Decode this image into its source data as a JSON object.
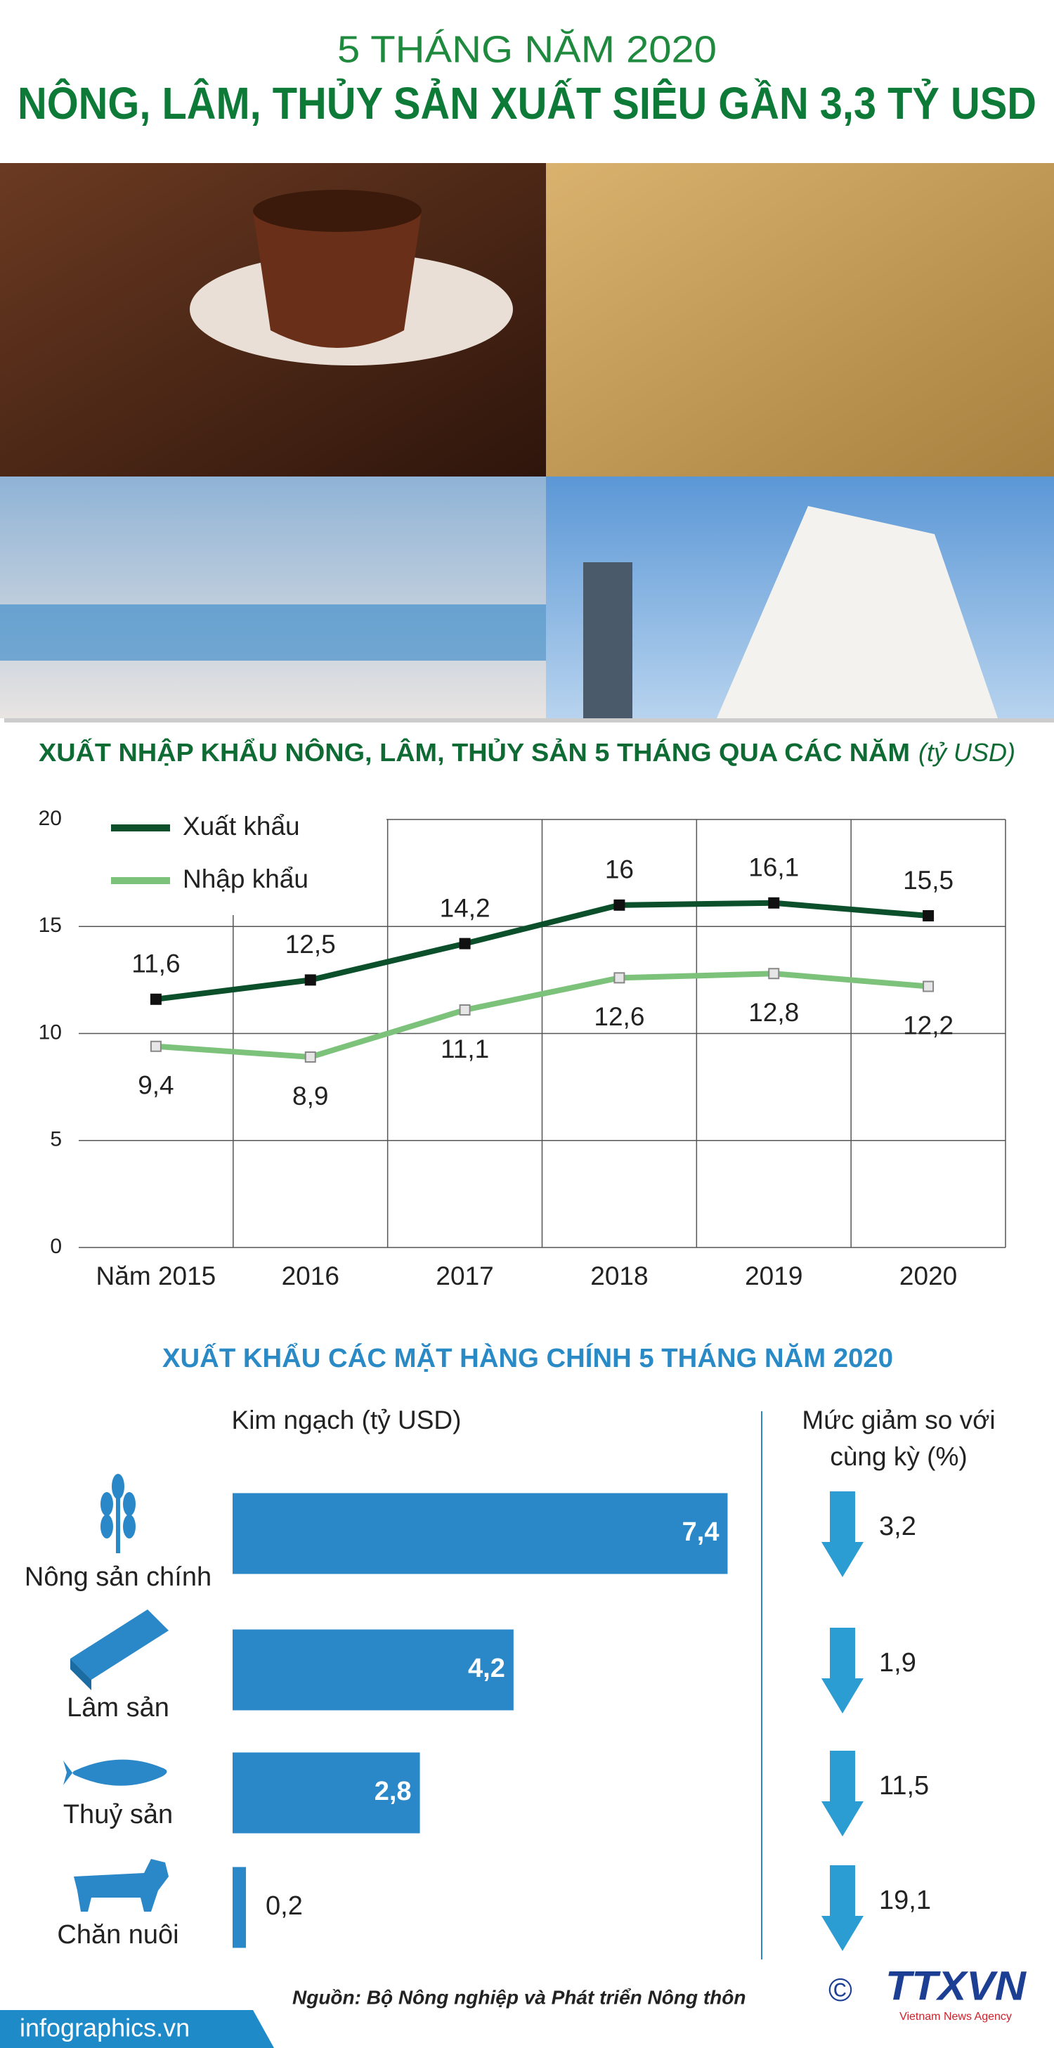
{
  "header": {
    "subtitle": "5 THÁNG NĂM 2020",
    "title": "NÔNG, LÂM, THỦY SẢN XUẤT SIÊU GẦN 3,3 TỶ USD"
  },
  "chart_data": [
    {
      "type": "line",
      "title": "XUẤT NHẬP KHẨU NÔNG, LÂM, THỦY SẢN 5 THÁNG QUA CÁC NĂM",
      "unit": "(tỷ USD)",
      "categories": [
        "Năm 2015",
        "2016",
        "2017",
        "2018",
        "2019",
        "2020"
      ],
      "series": [
        {
          "name": "Xuất khẩu",
          "color": "#0b4f2b",
          "values": [
            11.6,
            12.5,
            14.2,
            16,
            16.1,
            15.5
          ],
          "value_labels": [
            "11,6",
            "12,5",
            "14,2",
            "16",
            "16,1",
            "15,5"
          ]
        },
        {
          "name": "Nhập khẩu",
          "color": "#7dc27b",
          "values": [
            9.4,
            8.9,
            11.1,
            12.6,
            12.8,
            12.2
          ],
          "value_labels": [
            "9,4",
            "8,9",
            "11,1",
            "12,6",
            "12,8",
            "12,2"
          ]
        }
      ],
      "ylim": [
        0,
        20
      ],
      "yticks": [
        0,
        5,
        10,
        15,
        20
      ],
      "grid": true,
      "legend": "top-left"
    },
    {
      "type": "bar",
      "orientation": "horizontal",
      "title": "XUẤT KHẨU CÁC MẶT HÀNG CHÍNH 5 THÁNG NĂM 2020",
      "value_title": "Kim ngạch (tỷ USD)",
      "categories": [
        "Nông sản chính",
        "Lâm sản",
        "Thuỷ sản",
        "Chăn nuôi"
      ],
      "values": [
        7.4,
        4.2,
        2.8,
        0.2
      ],
      "value_labels": [
        "7,4",
        "4,2",
        "2,8",
        "0,2"
      ],
      "color": "#2a88c8",
      "change": {
        "title": [
          "Mức giảm so với",
          "cùng kỳ (%)"
        ],
        "values": [
          3.2,
          1.9,
          11.5,
          19.1
        ],
        "value_labels": [
          "3,2",
          "1,9",
          "11,5",
          "19,1"
        ],
        "color": "#2b9dd2"
      }
    }
  ],
  "footer": {
    "site": "infographics.vn",
    "source": "Nguồn: Bộ Nông nghiệp và Phát triển Nông thôn",
    "copyright": "©",
    "logo": "TTXVN",
    "agency": "Vietnam News Agency"
  }
}
